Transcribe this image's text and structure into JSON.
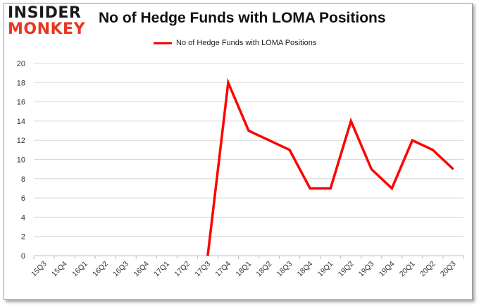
{
  "logo": {
    "line1": "INSIDER",
    "line2": "MONKEY"
  },
  "chart_data": {
    "type": "line",
    "title": "No of Hedge Funds with LOMA Positions",
    "categories": [
      "15Q3",
      "15Q4",
      "16Q1",
      "16Q2",
      "16Q3",
      "16Q4",
      "17Q1",
      "17Q2",
      "17Q3",
      "17Q4",
      "18Q1",
      "18Q2",
      "18Q3",
      "18Q4",
      "19Q1",
      "19Q2",
      "19Q3",
      "19Q4",
      "20Q1",
      "20Q2",
      "20Q3"
    ],
    "series": [
      {
        "name": "No of Hedge Funds with LOMA Positions",
        "values": [
          null,
          null,
          null,
          null,
          null,
          null,
          null,
          null,
          0,
          18,
          13,
          12,
          11,
          7,
          7,
          14,
          9,
          7,
          12,
          11,
          9
        ],
        "color": "#ff0000"
      }
    ],
    "ylim": [
      0,
      20
    ],
    "yticks": [
      0,
      2,
      4,
      6,
      8,
      10,
      12,
      14,
      16,
      18,
      20
    ],
    "grid": true,
    "legend_position": "top-center"
  }
}
